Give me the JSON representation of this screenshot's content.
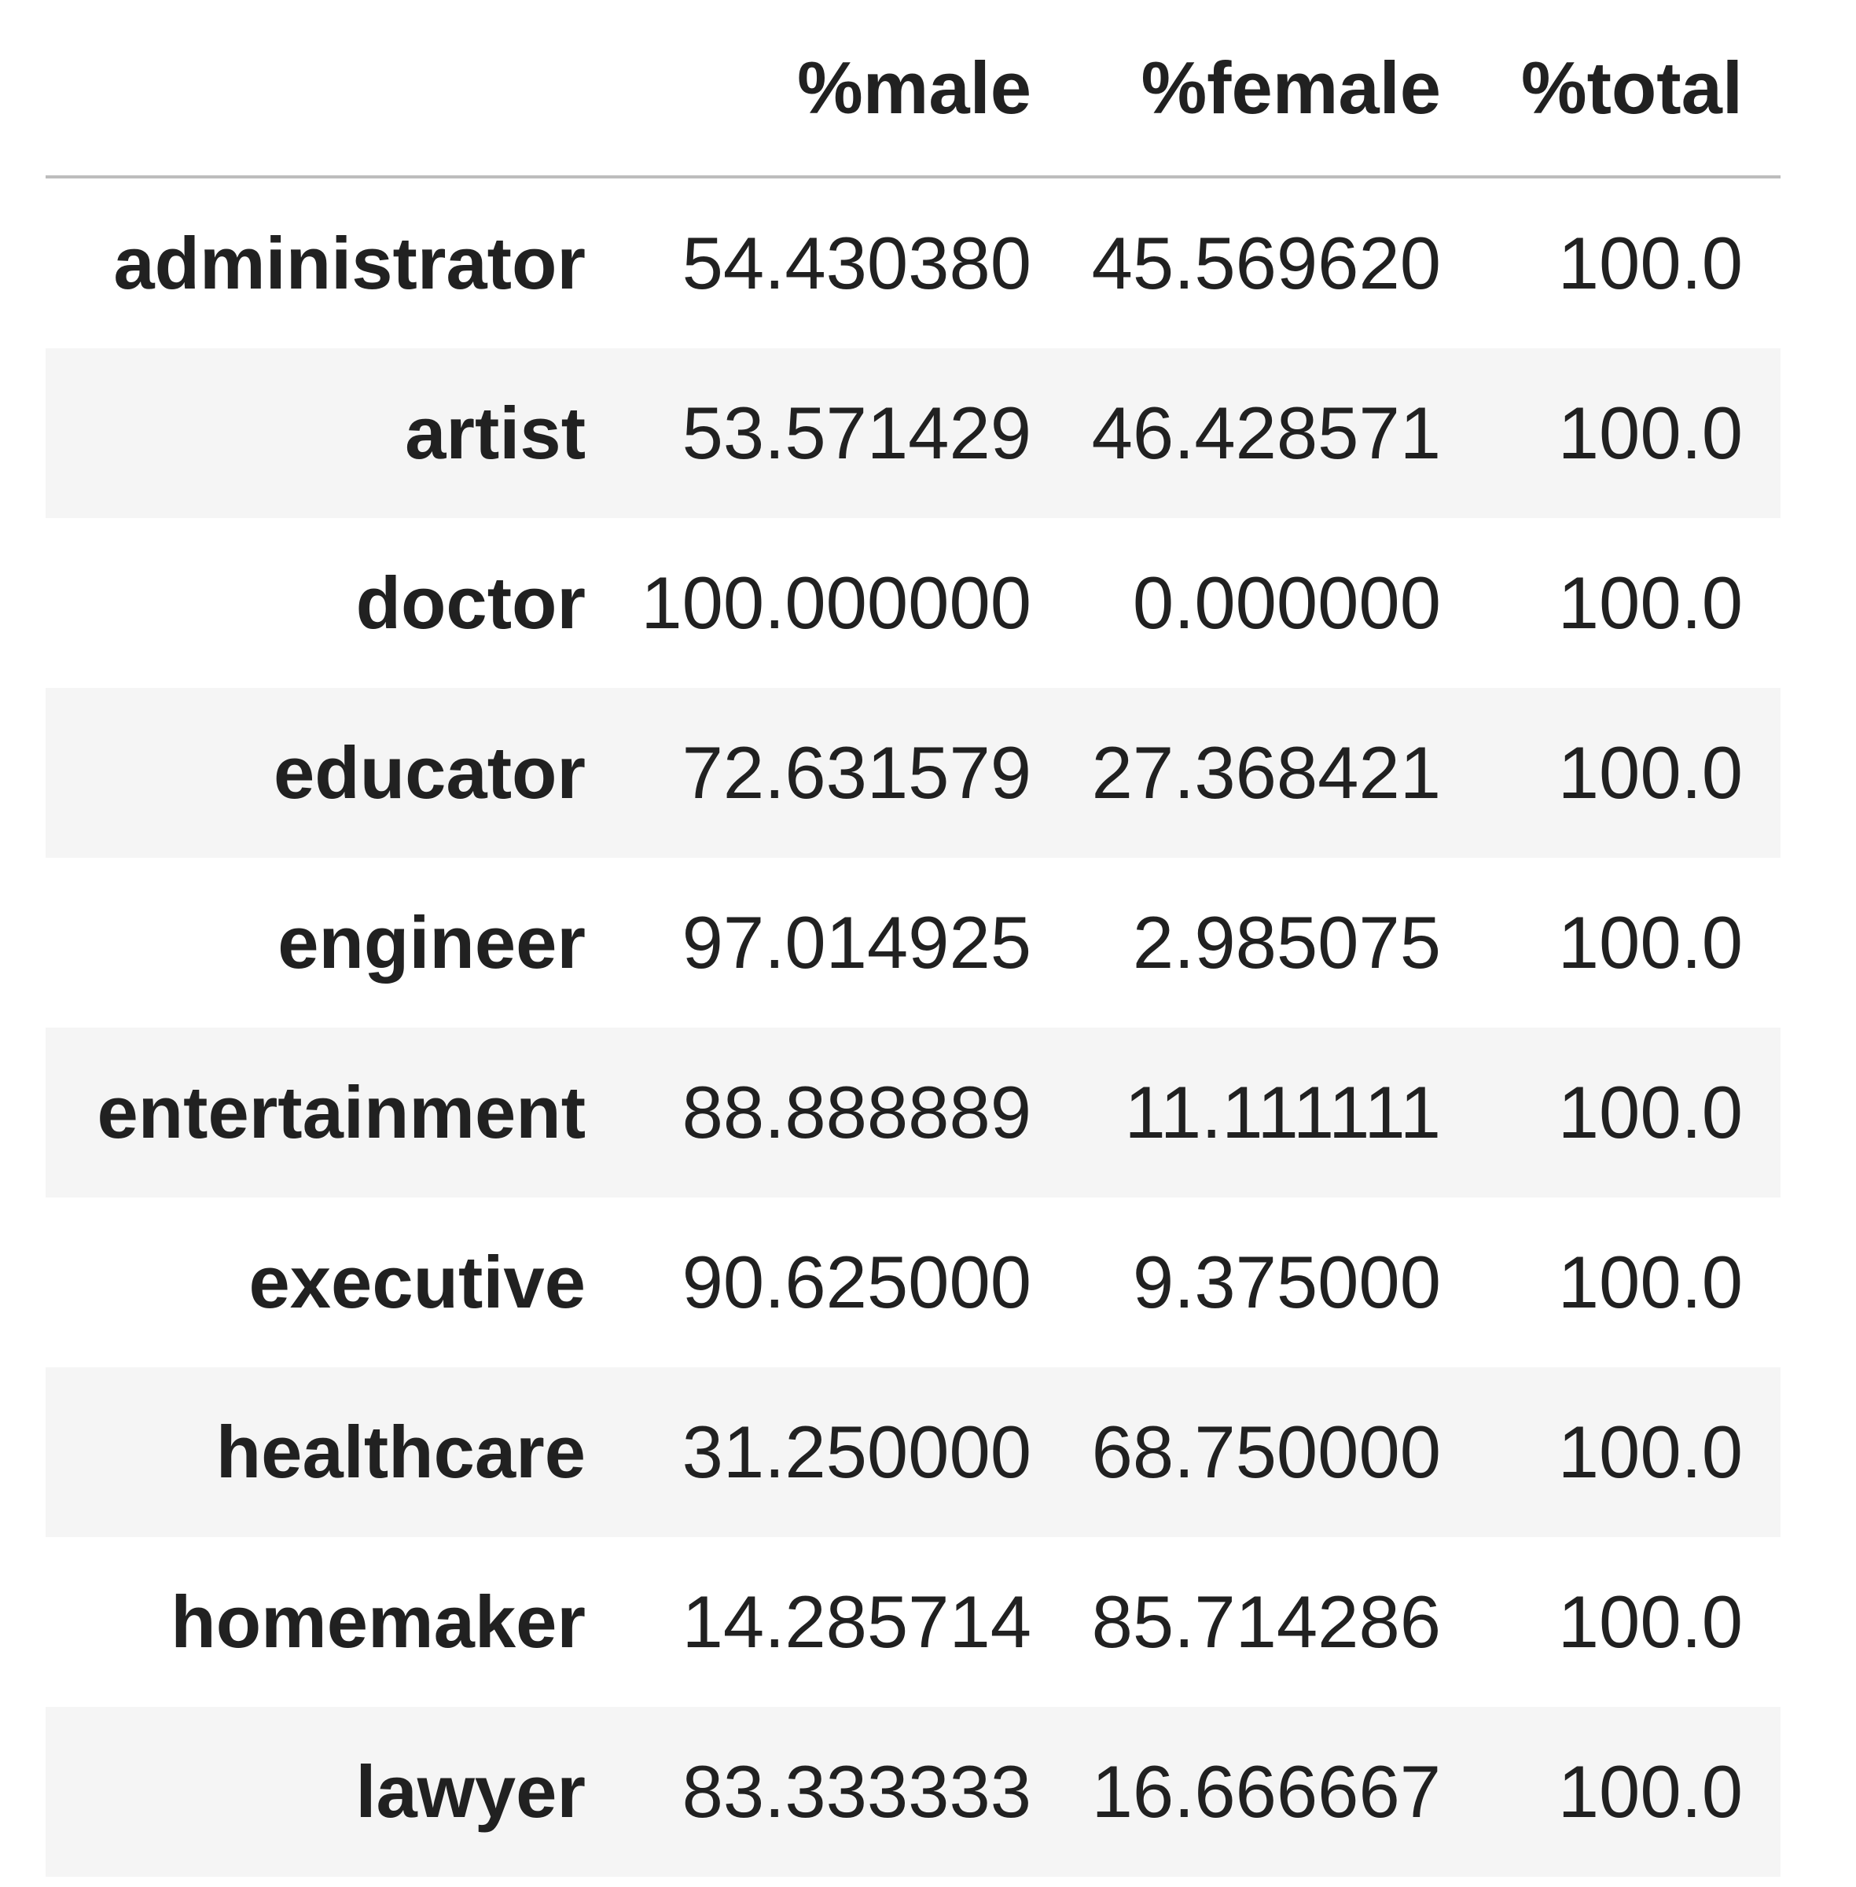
{
  "chart_data": {
    "type": "table",
    "title": "",
    "columns": [
      "%male",
      "%female",
      "%total"
    ],
    "rows": [
      {
        "index": "administrator",
        "male": 54.43038,
        "female": 45.56962,
        "total": 100.0,
        "display": [
          "54.430380",
          "45.569620",
          "100.0"
        ]
      },
      {
        "index": "artist",
        "male": 53.571429,
        "female": 46.428571,
        "total": 100.0,
        "display": [
          "53.571429",
          "46.428571",
          "100.0"
        ]
      },
      {
        "index": "doctor",
        "male": 100.0,
        "female": 0.0,
        "total": 100.0,
        "display": [
          "100.000000",
          "0.000000",
          "100.0"
        ]
      },
      {
        "index": "educator",
        "male": 72.631579,
        "female": 27.368421,
        "total": 100.0,
        "display": [
          "72.631579",
          "27.368421",
          "100.0"
        ]
      },
      {
        "index": "engineer",
        "male": 97.014925,
        "female": 2.985075,
        "total": 100.0,
        "display": [
          "97.014925",
          "2.985075",
          "100.0"
        ]
      },
      {
        "index": "entertainment",
        "male": 88.888889,
        "female": 11.111111,
        "total": 100.0,
        "display": [
          "88.888889",
          "11.111111",
          "100.0"
        ]
      },
      {
        "index": "executive",
        "male": 90.625,
        "female": 9.375,
        "total": 100.0,
        "display": [
          "90.625000",
          "9.375000",
          "100.0"
        ]
      },
      {
        "index": "healthcare",
        "male": 31.25,
        "female": 68.75,
        "total": 100.0,
        "display": [
          "31.250000",
          "68.750000",
          "100.0"
        ]
      },
      {
        "index": "homemaker",
        "male": 14.285714,
        "female": 85.714286,
        "total": 100.0,
        "display": [
          "14.285714",
          "85.714286",
          "100.0"
        ]
      },
      {
        "index": "lawyer",
        "male": 83.333333,
        "female": 16.666667,
        "total": 100.0,
        "display": [
          "83.333333",
          "16.666667",
          "100.0"
        ]
      }
    ],
    "layout": {
      "stripe_color": "#f5f5f5",
      "text_color": "#212121",
      "header_divider_color": "#bdbdbd",
      "background": "#ffffff",
      "row_label_align": "right",
      "value_align": "right"
    }
  }
}
